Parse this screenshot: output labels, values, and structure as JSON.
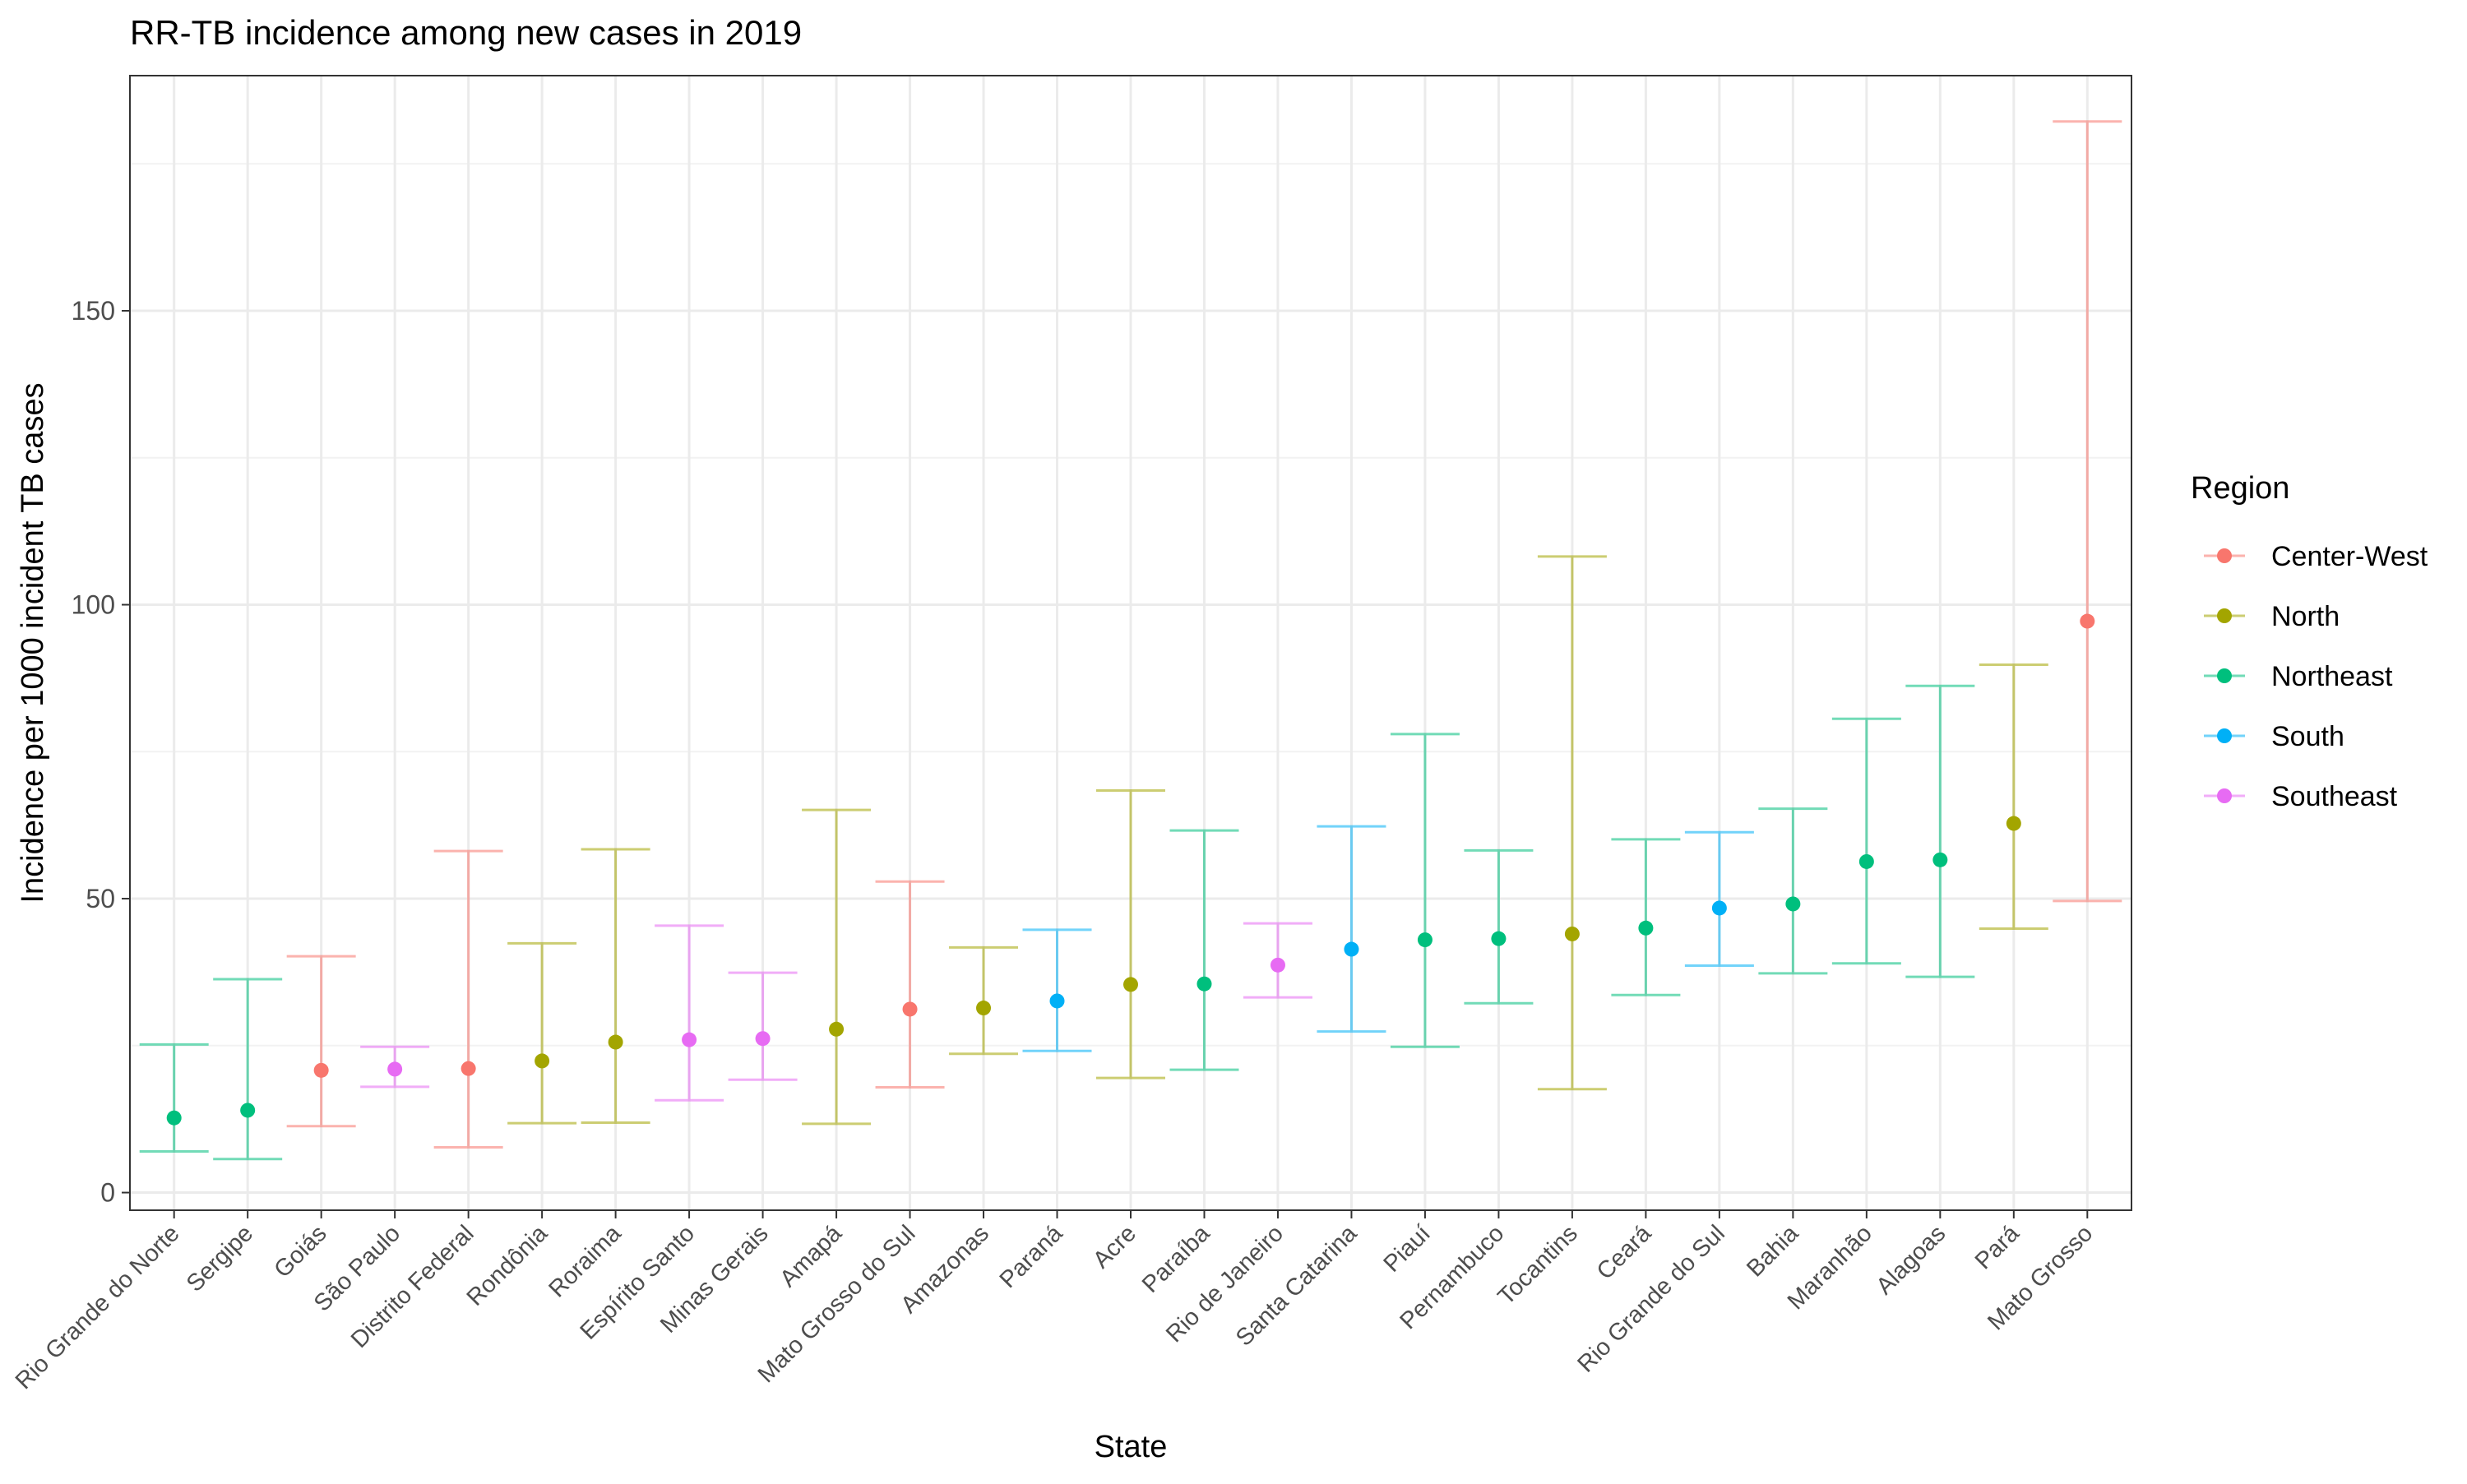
{
  "chart_data": {
    "type": "errorbar",
    "title": "RR-TB incidence among new cases in 2019",
    "xlabel": "State",
    "ylabel": "Incidence per 1000 incident TB cases",
    "ylim": [
      -3,
      190
    ],
    "yticks": [
      0,
      50,
      100,
      150
    ],
    "grid": true,
    "legend": {
      "title": "Region",
      "placement": "right",
      "entries": [
        {
          "name": "Center-West",
          "color": "#F8766D"
        },
        {
          "name": "North",
          "color": "#A3A500"
        },
        {
          "name": "Northeast",
          "color": "#00BF7D"
        },
        {
          "name": "South",
          "color": "#00B0F6"
        },
        {
          "name": "Southeast",
          "color": "#E76BF3"
        }
      ]
    },
    "points": [
      {
        "state": "Rio Grande do Norte",
        "region": "Northeast",
        "value": 12.7,
        "lower": 7.0,
        "upper": 25.2
      },
      {
        "state": "Sergipe",
        "region": "Northeast",
        "value": 14.0,
        "lower": 5.7,
        "upper": 36.3
      },
      {
        "state": "Goiás",
        "region": "Center-West",
        "value": 20.8,
        "lower": 11.3,
        "upper": 40.2
      },
      {
        "state": "São Paulo",
        "region": "Southeast",
        "value": 21.0,
        "lower": 18.0,
        "upper": 24.8
      },
      {
        "state": "Distrito Federal",
        "region": "Center-West",
        "value": 21.1,
        "lower": 7.7,
        "upper": 58.1
      },
      {
        "state": "Rondônia",
        "region": "North",
        "value": 22.4,
        "lower": 11.8,
        "upper": 42.4
      },
      {
        "state": "Roraima",
        "region": "North",
        "value": 25.6,
        "lower": 11.9,
        "upper": 58.4
      },
      {
        "state": "Espírito Santo",
        "region": "Southeast",
        "value": 26.0,
        "lower": 15.7,
        "upper": 45.4
      },
      {
        "state": "Minas Gerais",
        "region": "Southeast",
        "value": 26.2,
        "lower": 19.2,
        "upper": 37.4
      },
      {
        "state": "Amapá",
        "region": "North",
        "value": 27.8,
        "lower": 11.7,
        "upper": 65.1
      },
      {
        "state": "Mato Grosso do Sul",
        "region": "Center-West",
        "value": 31.2,
        "lower": 17.9,
        "upper": 52.9
      },
      {
        "state": "Amazonas",
        "region": "North",
        "value": 31.4,
        "lower": 23.6,
        "upper": 41.7
      },
      {
        "state": "Paraná",
        "region": "South",
        "value": 32.6,
        "lower": 24.1,
        "upper": 44.7
      },
      {
        "state": "Acre",
        "region": "North",
        "value": 35.4,
        "lower": 19.5,
        "upper": 68.4
      },
      {
        "state": "Paraíba",
        "region": "Northeast",
        "value": 35.5,
        "lower": 20.9,
        "upper": 61.6
      },
      {
        "state": "Rio de Janeiro",
        "region": "Southeast",
        "value": 38.7,
        "lower": 33.2,
        "upper": 45.8
      },
      {
        "state": "Santa Catarina",
        "region": "South",
        "value": 41.4,
        "lower": 27.4,
        "upper": 62.3
      },
      {
        "state": "Piauí",
        "region": "Northeast",
        "value": 43.0,
        "lower": 24.8,
        "upper": 78.0
      },
      {
        "state": "Pernambuco",
        "region": "Northeast",
        "value": 43.2,
        "lower": 32.2,
        "upper": 58.2
      },
      {
        "state": "Tocantins",
        "region": "North",
        "value": 44.0,
        "lower": 17.6,
        "upper": 108.2
      },
      {
        "state": "Ceará",
        "region": "Northeast",
        "value": 45.0,
        "lower": 33.6,
        "upper": 60.1
      },
      {
        "state": "Rio Grande do Sul",
        "region": "South",
        "value": 48.4,
        "lower": 38.6,
        "upper": 61.3
      },
      {
        "state": "Bahia",
        "region": "Northeast",
        "value": 49.1,
        "lower": 37.3,
        "upper": 65.3
      },
      {
        "state": "Maranhão",
        "region": "Northeast",
        "value": 56.3,
        "lower": 39.0,
        "upper": 80.6
      },
      {
        "state": "Alagoas",
        "region": "Northeast",
        "value": 56.6,
        "lower": 36.7,
        "upper": 86.2
      },
      {
        "state": "Pará",
        "region": "North",
        "value": 62.8,
        "lower": 44.9,
        "upper": 89.8
      },
      {
        "state": "Mato Grosso",
        "region": "Center-West",
        "value": 97.2,
        "lower": 49.6,
        "upper": 182.2
      }
    ]
  }
}
